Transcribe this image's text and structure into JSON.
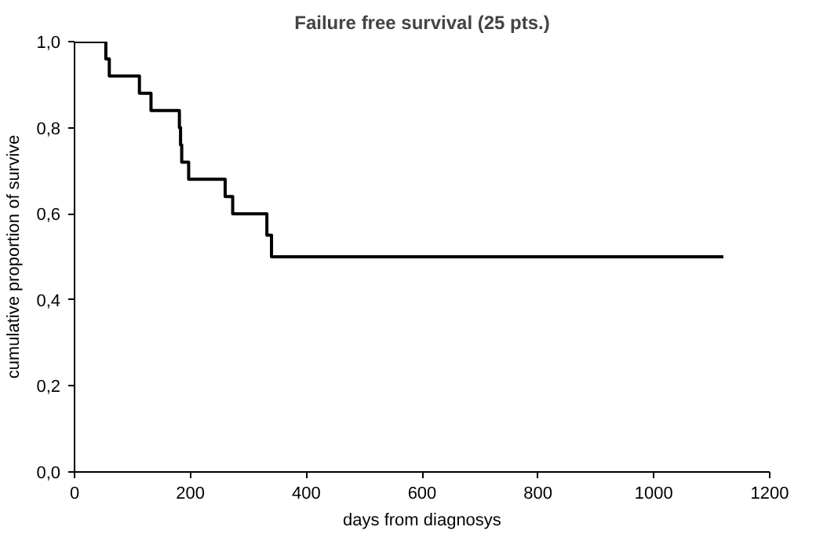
{
  "chart_data": {
    "type": "step",
    "title": "Failure free survival (25 pts.)",
    "xlabel": "days from diagnosys",
    "ylabel": "cumulative proportion of survive",
    "x": [
      0,
      54,
      60,
      112,
      132,
      181,
      183,
      185,
      197,
      260,
      273,
      332,
      340,
      1120
    ],
    "series": [
      {
        "color": "#000000",
        "values": [
          1,
          0.96,
          0.92,
          0.88,
          0.84,
          0.8,
          0.76,
          0.72,
          0.68,
          0.64,
          0.6,
          0.55,
          0.5,
          0.5
        ]
      }
    ],
    "xlim": [
      0,
      1200
    ],
    "xticks": [
      0,
      200,
      400,
      600,
      800,
      1000,
      1200
    ],
    "ylim": [
      0,
      1
    ],
    "yticks": [
      {
        "value": 0,
        "label": "0,0"
      },
      {
        "value": 0.2,
        "label": "0,2"
      },
      {
        "value": 0.4,
        "label": "0,4"
      },
      {
        "value": 0.6,
        "label": "0,6"
      },
      {
        "value": 0.8,
        "label": "0,8"
      },
      {
        "value": 1,
        "label": "1,0"
      }
    ],
    "grid": false,
    "marker": "none",
    "line_style": "solid"
  }
}
